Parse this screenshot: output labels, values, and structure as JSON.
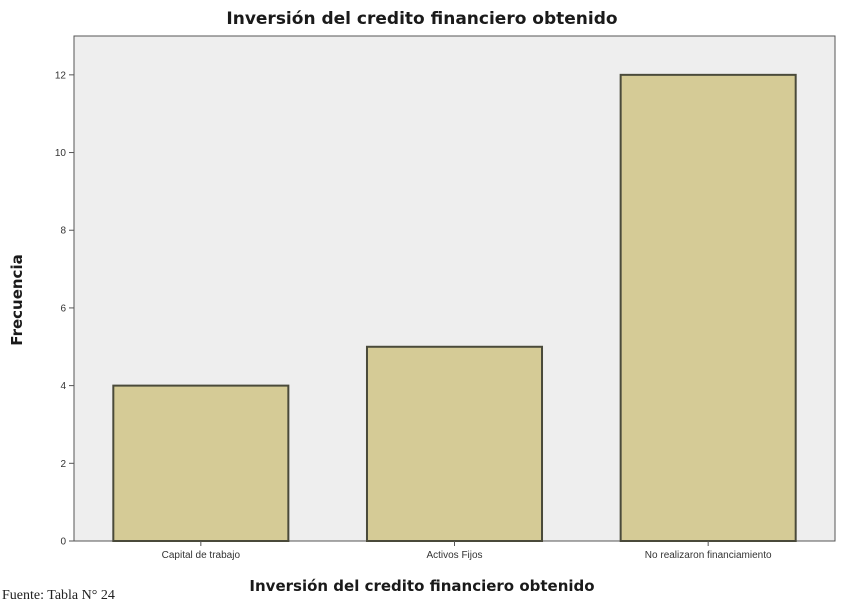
{
  "chart_data": {
    "type": "bar",
    "title": "Inversión del credito financiero obtenido",
    "xlabel": "Inversión del credito financiero obtenido",
    "ylabel": "Frecuencia",
    "categories": [
      "Capital de trabajo",
      "Activos Fijos",
      "No realizaron financiamiento"
    ],
    "values": [
      4,
      5,
      12
    ],
    "ylim": [
      0,
      13
    ],
    "yticks": [
      0,
      2,
      4,
      6,
      8,
      10,
      12
    ],
    "grid": false,
    "colors": {
      "bar_fill": "#d5cb96",
      "bar_stroke": "#4a4a3a",
      "plot_background": "#eeeeee",
      "plot_border": "#555555"
    }
  },
  "source_note": "Fuente: Tabla N° 24"
}
